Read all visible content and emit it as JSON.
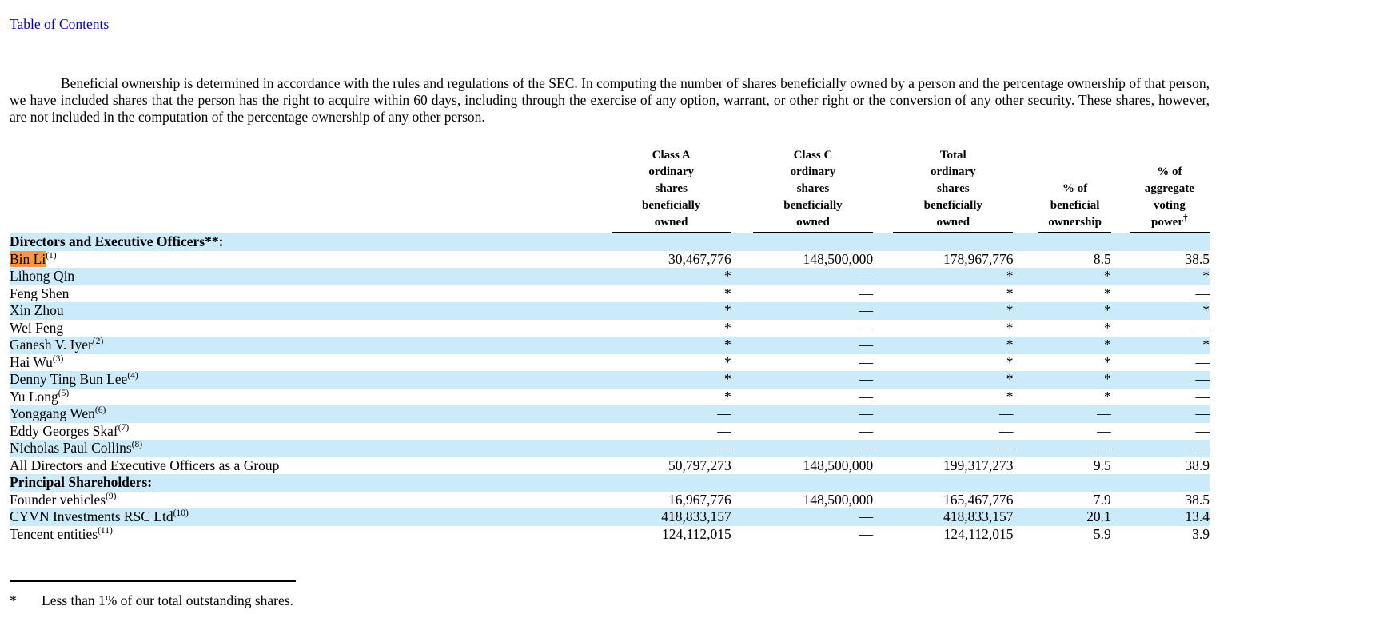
{
  "page": {
    "toc_link": "Table of Contents",
    "intro_paragraph": "Beneficial ownership is determined in accordance with the rules and regulations of the SEC. In computing the number of shares beneficially owned by a person and the percentage ownership of that person, we have included shares that the person has the right to acquire within 60 days, including through the exercise of any option, warrant, or other right or the conversion of any other security. These shares, however, are not included in the computation of the percentage ownership of any other person."
  },
  "table": {
    "headers": {
      "name": "",
      "class_a": "Class A\nordinary\nshares\nbeneficially\nowned",
      "class_c": "Class C\nordinary\nshares\nbeneficially\nowned",
      "total": "Total\nordinary\nshares\nbeneficially\nowned",
      "pct_beneficial": "% of\nbeneficial\nownership",
      "pct_voting": "% of\naggregate\nvoting\npower",
      "voting_dagger": "†"
    },
    "rows": [
      {
        "label": "Directors and Executive Officers**:",
        "bold": true,
        "section": true,
        "values": [
          "",
          "",
          "",
          "",
          ""
        ]
      },
      {
        "label": "Bin Li",
        "sup": "(1)",
        "highlight": true,
        "values": [
          "30,467,776",
          "148,500,000",
          "178,967,776",
          "8.5",
          "38.5"
        ]
      },
      {
        "label": "Lihong Qin",
        "values": [
          "*",
          "—",
          "*",
          "*",
          "*"
        ]
      },
      {
        "label": "Feng Shen",
        "values": [
          "*",
          "—",
          "*",
          "*",
          "—"
        ]
      },
      {
        "label": "Xin Zhou",
        "values": [
          "*",
          "—",
          "*",
          "*",
          "*"
        ]
      },
      {
        "label": "Wei Feng",
        "values": [
          "*",
          "—",
          "*",
          "*",
          "—"
        ]
      },
      {
        "label": "Ganesh V. Iyer",
        "sup": "(2)",
        "values": [
          "*",
          "—",
          "*",
          "*",
          "*"
        ]
      },
      {
        "label": "Hai Wu",
        "sup": "(3)",
        "values": [
          "*",
          "—",
          "*",
          "*",
          "—"
        ]
      },
      {
        "label": "Denny Ting Bun Lee",
        "sup": "(4)",
        "values": [
          "*",
          "—",
          "*",
          "*",
          "—"
        ]
      },
      {
        "label": "Yu Long",
        "sup": "(5)",
        "values": [
          "*",
          "—",
          "*",
          "*",
          "—"
        ]
      },
      {
        "label": "Yonggang Wen",
        "sup": "(6)",
        "values": [
          "—",
          "—",
          "—",
          "—",
          "—"
        ]
      },
      {
        "label": "Eddy Georges Skaf",
        "sup": "(7)",
        "values": [
          "—",
          "—",
          "—",
          "—",
          "—"
        ]
      },
      {
        "label": "Nicholas Paul Collins",
        "sup": "(8)",
        "values": [
          "—",
          "—",
          "—",
          "—",
          "—"
        ]
      },
      {
        "label": "All Directors and Executive Officers as a Group",
        "values": [
          "50,797,273",
          "148,500,000",
          "199,317,273",
          "9.5",
          "38.9"
        ]
      },
      {
        "label": "Principal Shareholders:",
        "bold": true,
        "section": true,
        "values": [
          "",
          "",
          "",
          "",
          ""
        ]
      },
      {
        "label": "Founder vehicles",
        "sup": "(9)",
        "values": [
          "16,967,776",
          "148,500,000",
          "165,467,776",
          "7.9",
          "38.5"
        ]
      },
      {
        "label": "CYVN Investments RSC Ltd",
        "sup": "(10)",
        "values": [
          "418,833,157",
          "—",
          "418,833,157",
          "20.1",
          "13.4"
        ]
      },
      {
        "label": "Tencent entities",
        "sup": "(11)",
        "values": [
          "124,112,015",
          "—",
          "124,112,015",
          "5.9",
          "3.9"
        ]
      }
    ]
  },
  "footnote": {
    "marker": "*",
    "text": "Less than 1% of our total outstanding shares."
  },
  "colors": {
    "row_stripe": "#cbeafa",
    "highlight": "#f79646",
    "link": "#0000cc"
  }
}
